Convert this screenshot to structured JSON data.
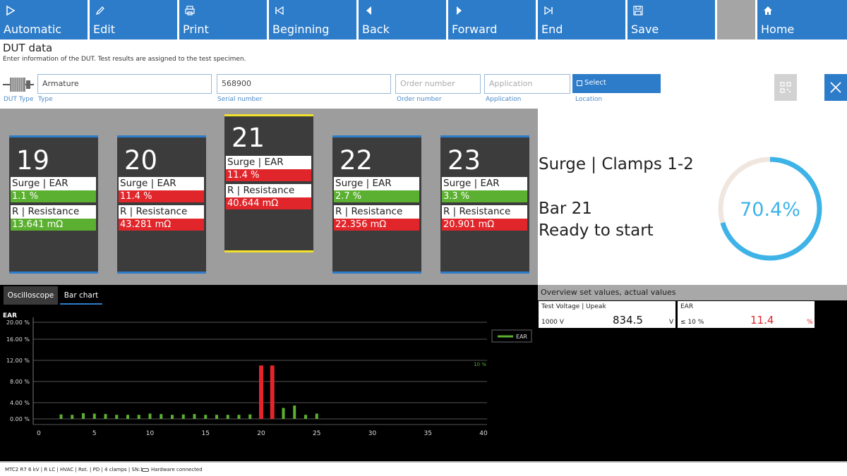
{
  "toolbar": {
    "buttons": [
      {
        "label": "Automatic",
        "icon": "play-outline-icon"
      },
      {
        "label": "Edit",
        "icon": "pencil-icon"
      },
      {
        "label": "Print",
        "icon": "printer-icon"
      },
      {
        "label": "Beginning",
        "icon": "skip-to-start-icon"
      },
      {
        "label": "Back",
        "icon": "triangle-left-icon"
      },
      {
        "label": "Forward",
        "icon": "triangle-right-icon"
      },
      {
        "label": "End",
        "icon": "skip-to-end-icon"
      },
      {
        "label": "Save",
        "icon": "floppy-disk-icon"
      },
      {
        "label": "Home",
        "icon": "home-icon"
      }
    ]
  },
  "dut": {
    "title": "DUT data",
    "description": "Enter information of the DUT. Test results are assigned to the test specimen.",
    "dut_type_label": "DUT Type",
    "type": {
      "value": "Armature",
      "label": "Type"
    },
    "serial": {
      "value": "568900",
      "label": "Serial number"
    },
    "order": {
      "placeholder": "Order number",
      "label": "Order number"
    },
    "application": {
      "placeholder": "Application",
      "label": "Application"
    },
    "location": {
      "button": "Select",
      "label": "Location"
    }
  },
  "bars": [
    {
      "num": "19",
      "r1_label": "Surge | EAR",
      "r1_value": "1.1 %",
      "r1_status": "pass",
      "r2_label": "R | Resistance",
      "r2_value": "13.641 mΩ",
      "r2_status": "pass"
    },
    {
      "num": "20",
      "r1_label": "Surge | EAR",
      "r1_value": "11.4 %",
      "r1_status": "fail",
      "r2_label": "R | Resistance",
      "r2_value": "43.281 mΩ",
      "r2_status": "fail"
    },
    {
      "num": "21",
      "r1_label": "Surge | EAR",
      "r1_value": "11.4 %",
      "r1_status": "fail",
      "r2_label": "R | Resistance",
      "r2_value": "40.644 mΩ",
      "r2_status": "fail",
      "selected": true
    },
    {
      "num": "22",
      "r1_label": "Surge | EAR",
      "r1_value": "2.7 %",
      "r1_status": "pass",
      "r2_label": "R | Resistance",
      "r2_value": "22.356 mΩ",
      "r2_status": "fail"
    },
    {
      "num": "23",
      "r1_label": "Surge | EAR",
      "r1_value": "3.3 %",
      "r1_status": "pass",
      "r2_label": "R | Resistance",
      "r2_value": "20.901 mΩ",
      "r2_status": "fail"
    }
  ],
  "status": {
    "test": "Surge | Clamps 1-2",
    "bar": "Bar 21",
    "state": "Ready to start",
    "progress_text": "70.4%",
    "progress": 0.704
  },
  "tabs": {
    "oscilloscope": "Oscilloscope",
    "bar_chart": "Bar chart"
  },
  "chart_data": {
    "type": "bar",
    "title": "EAR",
    "legend": "EAR",
    "legend_position": "top-right",
    "limit_label": "10 %",
    "limit": 10,
    "x_ticks": [
      "0",
      "5",
      "10",
      "15",
      "20",
      "25",
      "30",
      "35",
      "40"
    ],
    "y_ticks": [
      "20.00 %",
      "16.00 %",
      "12.00 %",
      "8.00 %",
      "4.00 %",
      "0.00 %"
    ],
    "xlim": [
      0,
      40
    ],
    "x": [
      2,
      3,
      4,
      5,
      6,
      7,
      8,
      9,
      10,
      11,
      12,
      13,
      14,
      15,
      16,
      17,
      18,
      19,
      20,
      21,
      22,
      23,
      24,
      25
    ],
    "values": [
      1.1,
      1.0,
      1.4,
      1.3,
      1.2,
      1.0,
      1.0,
      1.0,
      1.3,
      1.2,
      1.0,
      1.1,
      1.2,
      1.0,
      1.0,
      1.0,
      1.0,
      1.1,
      11.4,
      11.4,
      2.7,
      3.3,
      1.0,
      1.3
    ],
    "colors": {
      "pass": "#5bb031",
      "fail": "#e0262b"
    },
    "grid": true
  },
  "overview": {
    "title": "Overview set values, actual values",
    "cards": [
      {
        "label": "Test Voltage | Upeak",
        "set": "1000 V",
        "actual": "834.5",
        "unit": "V",
        "status": "pass"
      },
      {
        "label": "EAR",
        "set": "≤ 10 %",
        "actual": "11.4",
        "unit": "%",
        "status": "fail"
      }
    ]
  },
  "statusbar": {
    "device": "MTC2 R7 6 kV | R LC | HVAC | Rot. | PD | 4 clamps | SN:1",
    "hardware": "Hardware connected"
  }
}
